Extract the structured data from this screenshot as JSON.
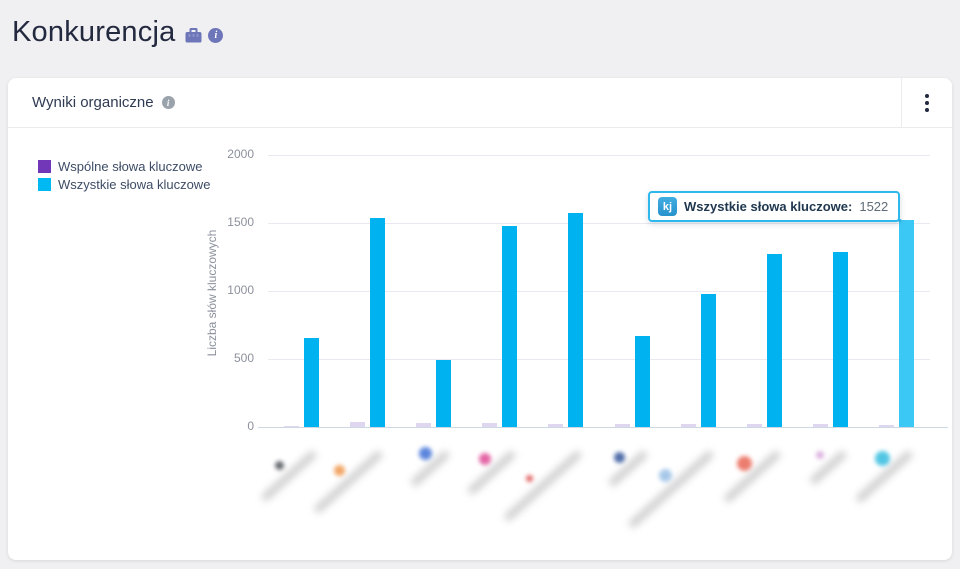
{
  "page": {
    "title": "Konkurencja",
    "icons": {
      "briefcase": "briefcase-icon",
      "info": "info-circle-icon"
    }
  },
  "card": {
    "title": "Wyniki organiczne",
    "info_icon": "info-circle-icon",
    "menu_icon": "kebab-menu-icon"
  },
  "chart_data": {
    "type": "bar",
    "title": "Wyniki organiczne",
    "xlabel": "",
    "ylabel": "Liczba słów kluczowych",
    "ylim": [
      0,
      2000
    ],
    "yticks": [
      0,
      500,
      1000,
      1500,
      2000
    ],
    "grid": true,
    "legend_position": "top-left",
    "x_labels_blurred": true,
    "series": [
      {
        "name": "Wspólne słowa kluczowe",
        "legend_color": "#7137b8",
        "bar_color": "#ded7ef",
        "values": [
          5,
          35,
          32,
          28,
          25,
          24,
          22,
          25,
          23,
          18
        ]
      },
      {
        "name": "Wszystkie słowa kluczowe",
        "legend_color": "#00b9f2",
        "bar_color": "#00b2f0",
        "highlight_color": "#3cc8f5",
        "values": [
          655,
          1540,
          495,
          1480,
          1570,
          670,
          975,
          1270,
          1290,
          1522
        ]
      }
    ],
    "highlight": {
      "series_index": 1,
      "point_index": 9,
      "value": 1522
    },
    "tooltip": {
      "badge_text": "kj",
      "label": "Wszystkie słowa kluczowe:",
      "value": "1522",
      "border_color": "#2eb8ec"
    },
    "competitors": [
      {
        "favicon_color": "#55595e",
        "favicon_size": 9,
        "label_len": 70,
        "icon_d": 40
      },
      {
        "favicon_color": "#f09d57",
        "favicon_size": 11,
        "label_len": 88,
        "icon_d": 48
      },
      {
        "favicon_color": "#4b79d9",
        "favicon_size": 13,
        "label_len": 48,
        "icon_d": 22
      },
      {
        "favicon_color": "#e0559c",
        "favicon_size": 12,
        "label_len": 60,
        "icon_d": 30
      },
      {
        "favicon_color": "#e05252",
        "favicon_size": 7,
        "label_len": 100,
        "icon_d": 60
      },
      {
        "favicon_color": "#3f5fa0",
        "favicon_size": 11,
        "label_len": 48,
        "icon_d": 28
      },
      {
        "favicon_color": "#9fc3e8",
        "favicon_size": 13,
        "label_len": 110,
        "icon_d": 55
      },
      {
        "favicon_color": "#ea6f5f",
        "favicon_size": 15,
        "label_len": 72,
        "icon_d": 38
      },
      {
        "favicon_color": "#d9a9dd",
        "favicon_size": 8,
        "label_len": 45,
        "icon_d": 25
      },
      {
        "favicon_color": "#3fc0e0",
        "favicon_size": 15,
        "label_len": 72,
        "icon_d": 30
      }
    ],
    "colors": {
      "grid": "#e9e9ef",
      "baseline": "#ccd8e2",
      "axis_text": "#8b919c"
    }
  }
}
